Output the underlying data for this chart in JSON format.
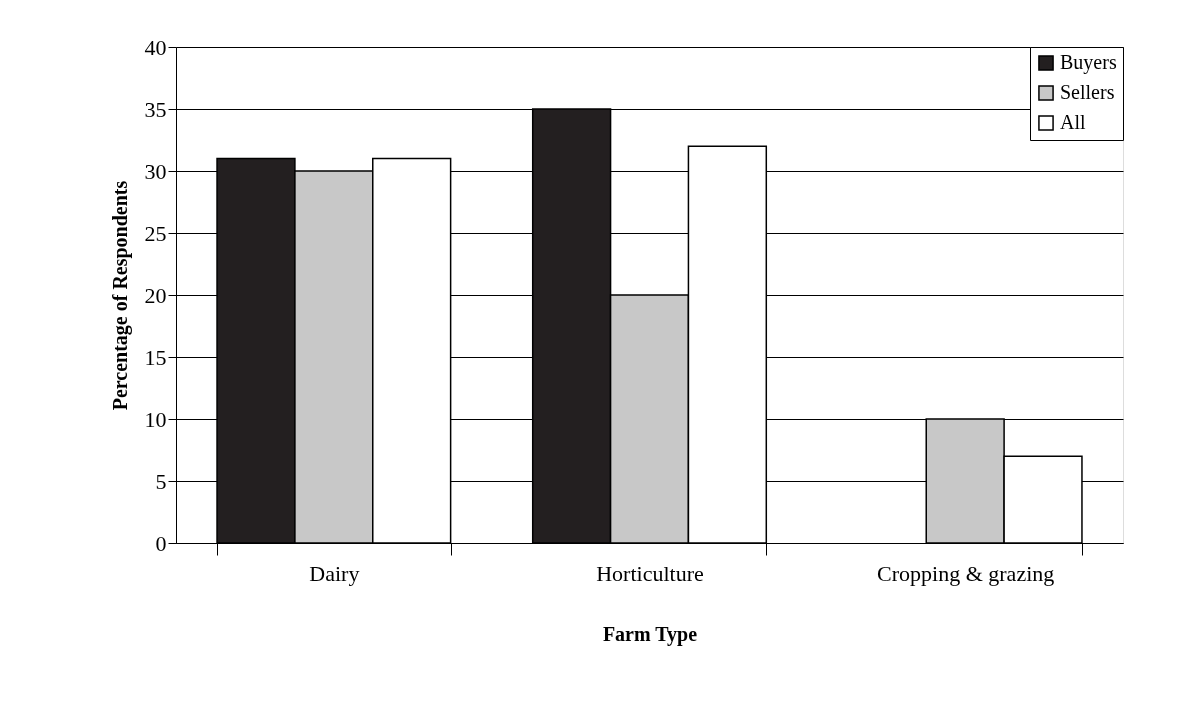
{
  "chart_data": {
    "type": "bar",
    "xlabel": "Farm Type",
    "ylabel": "Percentage of Respondents",
    "categories": [
      "Dairy",
      "Horticulture",
      "Cropping & grazing"
    ],
    "series": [
      {
        "name": "Buyers",
        "color": "#231f20",
        "values": [
          31,
          35,
          null
        ]
      },
      {
        "name": "Sellers",
        "color": "#c8c8c8",
        "values": [
          30,
          20,
          10
        ]
      },
      {
        "name": "All",
        "color": "#ffffff",
        "values": [
          31,
          32,
          7
        ]
      }
    ],
    "ylim": [
      0,
      40
    ],
    "yticks": [
      0,
      5,
      10,
      15,
      20,
      25,
      30,
      35,
      40
    ],
    "grid": "y",
    "legend": "top right"
  }
}
